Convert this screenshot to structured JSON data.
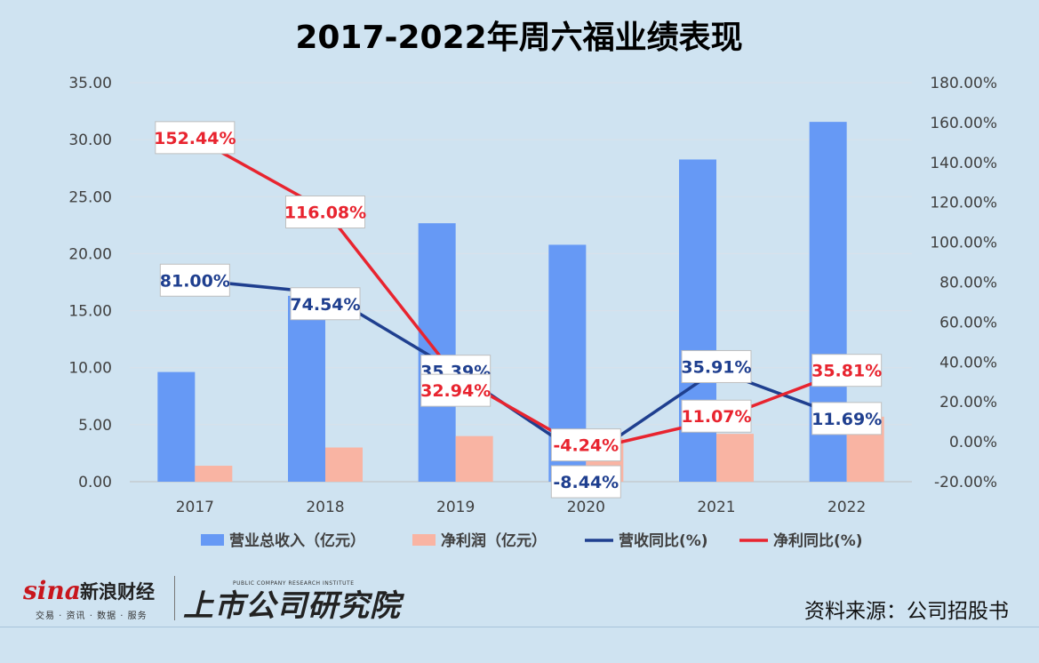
{
  "chart_data": {
    "type": "bar",
    "title": "2017-2022年周六福业绩表现",
    "categories": [
      "2017",
      "2018",
      "2019",
      "2020",
      "2021",
      "2022"
    ],
    "y_left": {
      "min": 0,
      "max": 35,
      "step": 5,
      "ticks": [
        "0.00",
        "5.00",
        "10.00",
        "15.00",
        "20.00",
        "25.00",
        "30.00",
        "35.00"
      ]
    },
    "y_right": {
      "min": -20,
      "max": 180,
      "step": 20,
      "ticks": [
        "-20.00%",
        "0.00%",
        "20.00%",
        "40.00%",
        "60.00%",
        "80.00%",
        "100.00%",
        "120.00%",
        "140.00%",
        "160.00%",
        "180.00%"
      ]
    },
    "grid": true,
    "legend_position": "bottom",
    "series": [
      {
        "name": "营业总收入（亿元）",
        "kind": "bar",
        "axis": "left",
        "color": "#6699f5",
        "values": [
          9.62,
          16.3,
          22.67,
          20.78,
          28.26,
          31.56
        ]
      },
      {
        "name": "净利润（亿元）",
        "kind": "bar",
        "axis": "left",
        "color": "#f9b4a3",
        "values": [
          1.4,
          3.0,
          4.0,
          3.8,
          4.2,
          5.7
        ]
      },
      {
        "name": "营收同比(%)",
        "kind": "line",
        "axis": "right",
        "color": "#1f3f8f",
        "values": [
          81.0,
          74.54,
          35.39,
          -8.44,
          35.91,
          11.69
        ],
        "labels": [
          "81.00%",
          "74.54%",
          "35.39%",
          "-8.44%",
          "35.91%",
          "11.69%"
        ]
      },
      {
        "name": "净利同比(%)",
        "kind": "line",
        "axis": "right",
        "color": "#e8242f",
        "values": [
          152.44,
          116.08,
          32.94,
          -4.24,
          11.07,
          35.81
        ],
        "labels": [
          "152.44%",
          "116.08%",
          "32.94%",
          "-4.24%",
          "11.07%",
          "35.81%"
        ]
      }
    ]
  },
  "footer": {
    "sina_logo": "sina",
    "sina_name": "新浪财经",
    "sina_sub": "交易 · 资讯 · 数据 · 服务",
    "institute_name": "上市公司研究院",
    "institute_sub": "PUBLIC COMPANY RESEARCH INSTITUTE",
    "source": "资料来源：公司招股书"
  }
}
